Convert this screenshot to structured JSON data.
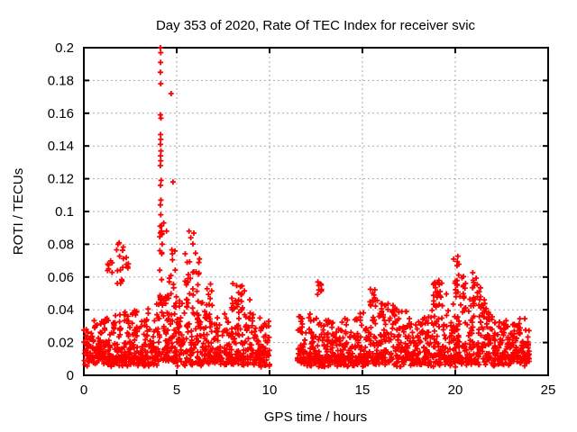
{
  "window": {
    "background": "#ffffff"
  },
  "chart_data": {
    "type": "scatter",
    "title": "Day 353 of 2020, Rate Of TEC Index for receiver svic",
    "xlabel": "GPS time / hours",
    "ylabel": "ROTI / TECUs",
    "xlim": [
      0,
      25
    ],
    "ylim": [
      0,
      0.2
    ],
    "xticks": [
      {
        "v": 0,
        "label": "0"
      },
      {
        "v": 5,
        "label": "5"
      },
      {
        "v": 10,
        "label": "10"
      },
      {
        "v": 15,
        "label": "15"
      },
      {
        "v": 20,
        "label": "20"
      },
      {
        "v": 25,
        "label": "25"
      }
    ],
    "yticks": [
      {
        "v": 0,
        "label": "0"
      },
      {
        "v": 0.02,
        "label": "0.02"
      },
      {
        "v": 0.04,
        "label": "0.04"
      },
      {
        "v": 0.06,
        "label": "0.06"
      },
      {
        "v": 0.08,
        "label": "0.08"
      },
      {
        "v": 0.1,
        "label": "0.1"
      },
      {
        "v": 0.12,
        "label": "0.12"
      },
      {
        "v": 0.14,
        "label": "0.14"
      },
      {
        "v": 0.16,
        "label": "0.16"
      },
      {
        "v": 0.18,
        "label": "0.18"
      },
      {
        "v": 0.2,
        "label": "0.2"
      }
    ],
    "grid": true,
    "legend": "none",
    "marker": "plus",
    "marker_color": "#ff0000",
    "grid_color": "#aaaaaa",
    "axis_color": "#000000",
    "series_name": "ROTI",
    "data_gap_hours": [
      [
        10.0,
        11.5
      ]
    ],
    "band": {
      "bin_width_hours": 0.5,
      "points_per_bin": 46,
      "v_floor": 0.005,
      "bins": [
        [
          0,
          0.03
        ],
        [
          0.5,
          0.034
        ],
        [
          1,
          0.04
        ],
        [
          1.5,
          0.044
        ],
        [
          2,
          0.04
        ],
        [
          2.5,
          0.04
        ],
        [
          3,
          0.044
        ],
        [
          3.5,
          0.046
        ],
        [
          4,
          0.05
        ],
        [
          4.5,
          0.05
        ],
        [
          5,
          0.046
        ],
        [
          5.5,
          0.055
        ],
        [
          6,
          0.05
        ],
        [
          6.5,
          0.042
        ],
        [
          7,
          0.036
        ],
        [
          7.5,
          0.042
        ],
        [
          8,
          0.05
        ],
        [
          8.5,
          0.055
        ],
        [
          9,
          0.04
        ],
        [
          9.5,
          0.035
        ],
        [
          11.5,
          0.036
        ],
        [
          12,
          0.04
        ],
        [
          12.5,
          0.036
        ],
        [
          13,
          0.035
        ],
        [
          13.5,
          0.03
        ],
        [
          14,
          0.034
        ],
        [
          14.5,
          0.04
        ],
        [
          15,
          0.042
        ],
        [
          15.5,
          0.05
        ],
        [
          16,
          0.044
        ],
        [
          16.5,
          0.042
        ],
        [
          17,
          0.036
        ],
        [
          17.5,
          0.035
        ],
        [
          18,
          0.036
        ],
        [
          18.5,
          0.042
        ],
        [
          19,
          0.05
        ],
        [
          19.5,
          0.046
        ],
        [
          20,
          0.055
        ],
        [
          20.5,
          0.058
        ],
        [
          21,
          0.055
        ],
        [
          21.5,
          0.046
        ],
        [
          22,
          0.036
        ],
        [
          22.5,
          0.032
        ],
        [
          23,
          0.032
        ],
        [
          23.5,
          0.032
        ]
      ]
    },
    "clusters": [
      [
        1.4,
        0.15,
        0.06,
        0.071,
        7
      ],
      [
        1.95,
        0.2,
        0.055,
        0.087,
        14
      ],
      [
        2.3,
        0.1,
        0.06,
        0.072,
        5
      ],
      [
        4.15,
        0.1,
        0.055,
        0.095,
        12
      ],
      [
        4.8,
        0.2,
        0.046,
        0.08,
        10
      ],
      [
        5.7,
        0.25,
        0.05,
        0.088,
        16
      ],
      [
        6.1,
        0.15,
        0.05,
        0.075,
        8
      ],
      [
        6.8,
        0.2,
        0.042,
        0.056,
        8
      ],
      [
        8.3,
        0.35,
        0.04,
        0.056,
        14
      ],
      [
        12.7,
        0.12,
        0.049,
        0.057,
        10
      ],
      [
        15.6,
        0.2,
        0.04,
        0.053,
        9
      ],
      [
        16.7,
        0.15,
        0.038,
        0.044,
        5
      ],
      [
        18.9,
        0.08,
        0.04,
        0.058,
        9
      ],
      [
        19.15,
        0.15,
        0.045,
        0.058,
        7
      ],
      [
        20.05,
        0.15,
        0.05,
        0.073,
        12
      ],
      [
        20.5,
        0.15,
        0.045,
        0.062,
        9
      ],
      [
        21.05,
        0.15,
        0.045,
        0.061,
        9
      ],
      [
        21.5,
        0.2,
        0.038,
        0.05,
        7
      ],
      [
        23.4,
        0.1,
        0.028,
        0.032,
        5
      ]
    ],
    "spike_points": [
      [
        4.12,
        0.2
      ],
      [
        4.14,
        0.197
      ],
      [
        4.13,
        0.191
      ],
      [
        4.12,
        0.185
      ],
      [
        4.14,
        0.178
      ],
      [
        4.7,
        0.172
      ],
      [
        4.12,
        0.159
      ],
      [
        4.15,
        0.157
      ],
      [
        4.13,
        0.147
      ],
      [
        4.14,
        0.144
      ],
      [
        4.12,
        0.141
      ],
      [
        4.15,
        0.137
      ],
      [
        4.13,
        0.134
      ],
      [
        4.14,
        0.131
      ],
      [
        4.12,
        0.128
      ],
      [
        4.16,
        0.119
      ],
      [
        4.8,
        0.118
      ],
      [
        4.13,
        0.116
      ],
      [
        4.15,
        0.107
      ],
      [
        4.12,
        0.104
      ],
      [
        4.14,
        0.098
      ],
      [
        4.3,
        0.093
      ],
      [
        4.1,
        0.091
      ],
      [
        4.45,
        0.088
      ],
      [
        4.2,
        0.086
      ]
    ],
    "random_seed": 353
  }
}
